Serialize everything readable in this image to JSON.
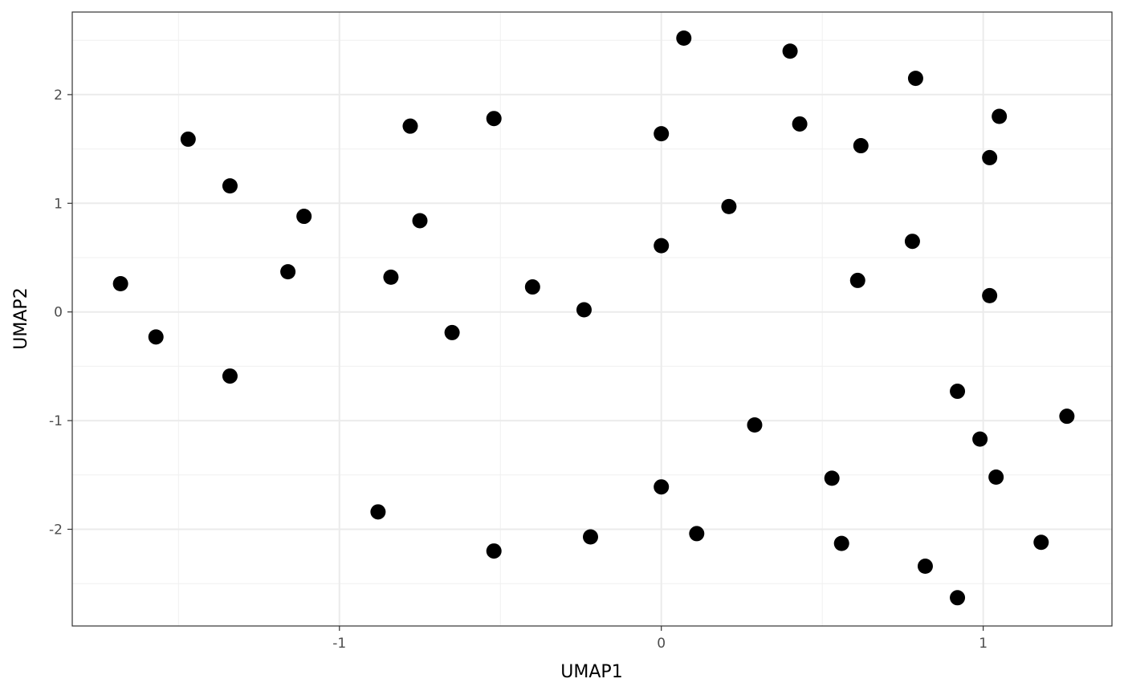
{
  "chart_data": {
    "type": "scatter",
    "title": "",
    "xlabel": "UMAP1",
    "ylabel": "UMAP2",
    "xlim": [
      -1.83,
      1.4
    ],
    "ylim": [
      -2.89,
      2.76
    ],
    "x_ticks": [
      {
        "value": -1,
        "label": "-1"
      },
      {
        "value": 0,
        "label": "0"
      },
      {
        "value": 1,
        "label": "1"
      }
    ],
    "y_ticks": [
      {
        "value": -2,
        "label": "-2"
      },
      {
        "value": -1,
        "label": "-1"
      },
      {
        "value": 0,
        "label": "0"
      },
      {
        "value": 1,
        "label": "1"
      },
      {
        "value": 2,
        "label": "2"
      }
    ],
    "grid": true,
    "point_color": "#000000",
    "points": [
      {
        "x": 0.07,
        "y": 2.52
      },
      {
        "x": 0.4,
        "y": 2.4
      },
      {
        "x": 0.79,
        "y": 2.15
      },
      {
        "x": 1.05,
        "y": 1.8
      },
      {
        "x": 1.02,
        "y": 1.42
      },
      {
        "x": 0.62,
        "y": 1.53
      },
      {
        "x": 0.43,
        "y": 1.73
      },
      {
        "x": 0.0,
        "y": 1.64
      },
      {
        "x": -0.52,
        "y": 1.78
      },
      {
        "x": -0.78,
        "y": 1.71
      },
      {
        "x": -1.47,
        "y": 1.59
      },
      {
        "x": -1.34,
        "y": 1.16
      },
      {
        "x": -1.11,
        "y": 0.88
      },
      {
        "x": -0.75,
        "y": 0.84
      },
      {
        "x": 0.21,
        "y": 0.97
      },
      {
        "x": 0.0,
        "y": 0.61
      },
      {
        "x": 0.78,
        "y": 0.65
      },
      {
        "x": 0.61,
        "y": 0.29
      },
      {
        "x": 1.02,
        "y": 0.15
      },
      {
        "x": -1.68,
        "y": 0.26
      },
      {
        "x": -1.16,
        "y": 0.37
      },
      {
        "x": -0.84,
        "y": 0.32
      },
      {
        "x": -0.4,
        "y": 0.23
      },
      {
        "x": -0.24,
        "y": 0.02
      },
      {
        "x": -0.65,
        "y": -0.19
      },
      {
        "x": -1.57,
        "y": -0.23
      },
      {
        "x": -1.34,
        "y": -0.59
      },
      {
        "x": 0.92,
        "y": -0.73
      },
      {
        "x": 1.26,
        "y": -0.96
      },
      {
        "x": 0.29,
        "y": -1.04
      },
      {
        "x": 0.99,
        "y": -1.17
      },
      {
        "x": 0.53,
        "y": -1.53
      },
      {
        "x": 1.04,
        "y": -1.52
      },
      {
        "x": 0.0,
        "y": -1.61
      },
      {
        "x": -0.88,
        "y": -1.84
      },
      {
        "x": 0.11,
        "y": -2.04
      },
      {
        "x": -0.22,
        "y": -2.07
      },
      {
        "x": -0.52,
        "y": -2.2
      },
      {
        "x": 0.56,
        "y": -2.13
      },
      {
        "x": 1.18,
        "y": -2.12
      },
      {
        "x": 0.82,
        "y": -2.34
      },
      {
        "x": 0.92,
        "y": -2.63
      }
    ]
  }
}
